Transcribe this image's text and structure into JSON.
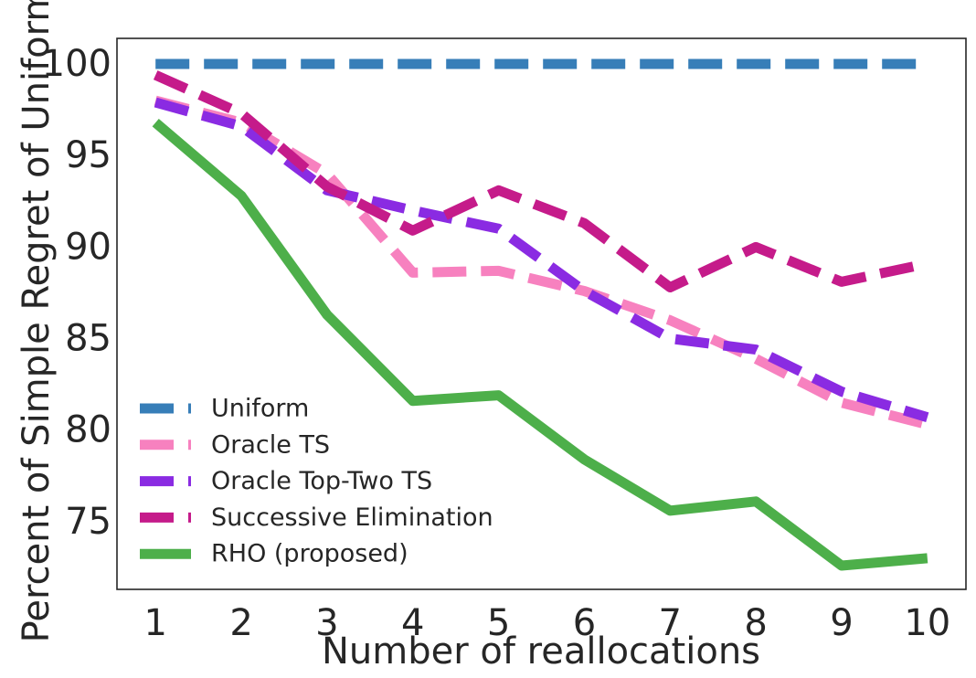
{
  "chart_data": {
    "type": "line",
    "title": "",
    "xlabel": "Number of reallocations",
    "ylabel": "Percent of Simple Regret of Uniform",
    "x": [
      1,
      2,
      3,
      4,
      5,
      6,
      7,
      8,
      9,
      10
    ],
    "xlim": [
      0.55,
      10.45
    ],
    "ylim": [
      71.3,
      101.4
    ],
    "yticks": [
      75,
      80,
      85,
      90,
      95,
      100
    ],
    "grid": false,
    "legend_position": "lower-left",
    "series": [
      {
        "name": "Uniform",
        "color": "#377eb8",
        "dash": "dashed",
        "values": [
          100,
          100,
          100,
          100,
          100,
          100,
          100,
          100,
          100,
          100
        ]
      },
      {
        "name": "Oracle TS",
        "color": "#f781bf",
        "dash": "dashed",
        "values": [
          98.0,
          96.8,
          94.0,
          88.6,
          88.7,
          87.6,
          86.0,
          83.9,
          81.5,
          80.3
        ]
      },
      {
        "name": "Oracle Top-Two TS",
        "color": "#8a2be2",
        "dash": "dashed",
        "values": [
          97.9,
          96.6,
          93.1,
          92.0,
          91.0,
          87.6,
          85.0,
          84.4,
          82.1,
          80.7
        ]
      },
      {
        "name": "Successive Elimination",
        "color": "#c51b8a",
        "dash": "dashed",
        "values": [
          99.4,
          97.3,
          93.3,
          90.9,
          93.1,
          91.3,
          87.8,
          90.0,
          88.1,
          89.1
        ]
      },
      {
        "name": "RHO (proposed)",
        "color": "#4daf4a",
        "dash": "solid",
        "values": [
          96.8,
          92.8,
          86.3,
          81.6,
          81.9,
          78.4,
          75.6,
          76.1,
          72.6,
          73.0
        ]
      }
    ]
  }
}
